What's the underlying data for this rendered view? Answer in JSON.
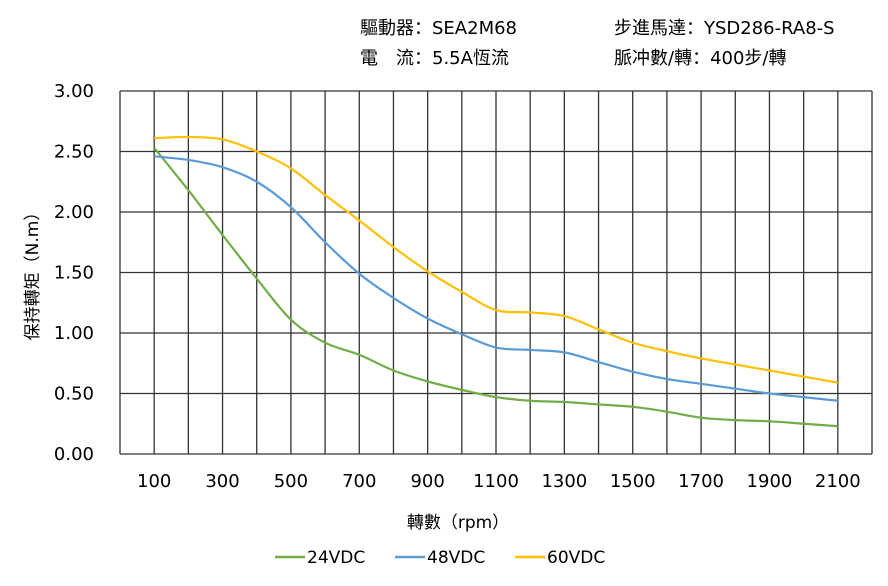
{
  "header": {
    "driver": "驅動器：SEA2M68",
    "motor": "步進馬達：YSD286-RA8-S",
    "current": "電　流：5.5A恆流",
    "pulses": "脈冲數/轉：400步/轉"
  },
  "chart_data": {
    "type": "line",
    "title": "",
    "xlabel": "轉數（rpm）",
    "ylabel": "保持轉矩（N.m）",
    "xlim": [
      0,
      2200
    ],
    "ylim": [
      0,
      3
    ],
    "xticks": [
      100,
      300,
      500,
      700,
      900,
      1100,
      1300,
      1500,
      1700,
      1900,
      2100
    ],
    "yticks": [
      "0.00",
      "0.50",
      "1.00",
      "1.50",
      "2.00",
      "2.50",
      "3.00"
    ],
    "grid": true,
    "legend_position": "bottom",
    "x": [
      100,
      200,
      300,
      400,
      500,
      600,
      700,
      800,
      900,
      1000,
      1100,
      1200,
      1300,
      1400,
      1500,
      1600,
      1700,
      1800,
      1900,
      2000,
      2100
    ],
    "series": [
      {
        "name": "24VDC",
        "color": "#70AD47",
        "values": [
          2.53,
          2.18,
          1.81,
          1.45,
          1.11,
          0.92,
          0.82,
          0.69,
          0.6,
          0.53,
          0.47,
          0.44,
          0.43,
          0.41,
          0.39,
          0.35,
          0.3,
          0.28,
          0.27,
          0.25,
          0.23
        ]
      },
      {
        "name": "48VDC",
        "color": "#5B9BD5",
        "values": [
          2.46,
          2.43,
          2.37,
          2.25,
          2.04,
          1.75,
          1.49,
          1.29,
          1.12,
          0.99,
          0.88,
          0.86,
          0.84,
          0.76,
          0.68,
          0.62,
          0.58,
          0.54,
          0.5,
          0.47,
          0.44
        ]
      },
      {
        "name": "60VDC",
        "color": "#FFC000",
        "values": [
          2.61,
          2.62,
          2.6,
          2.5,
          2.36,
          2.14,
          1.93,
          1.71,
          1.51,
          1.34,
          1.19,
          1.17,
          1.14,
          1.03,
          0.92,
          0.85,
          0.79,
          0.74,
          0.69,
          0.64,
          0.59
        ]
      }
    ]
  }
}
